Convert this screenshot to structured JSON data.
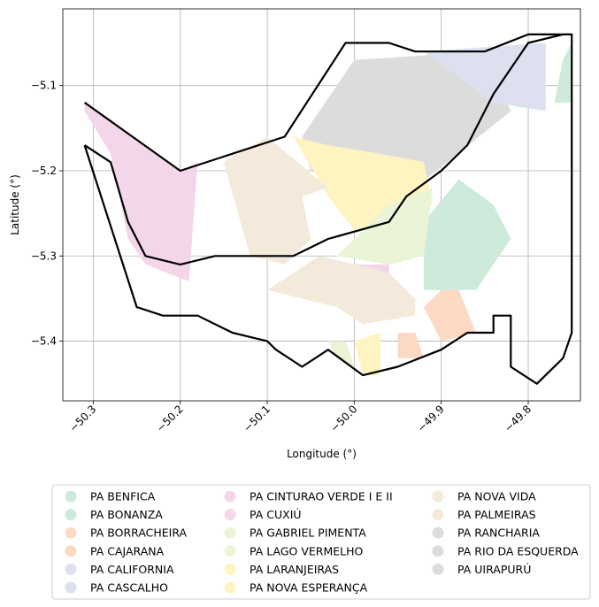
{
  "chart_data": {
    "type": "choropleth-map",
    "xlabel": "Longitude (°)",
    "ylabel": "Latitude (°)",
    "xlim": [
      -50.335,
      -49.74
    ],
    "ylim": [
      -5.47,
      -5.01
    ],
    "xticks": [
      {
        "value": -50.3,
        "label": "−50.3"
      },
      {
        "value": -50.2,
        "label": "−50.2"
      },
      {
        "value": -50.1,
        "label": "−50.1"
      },
      {
        "value": -50.0,
        "label": "−50.0"
      },
      {
        "value": -49.9,
        "label": "−49.9"
      },
      {
        "value": -49.8,
        "label": "−49.8"
      }
    ],
    "yticks": [
      {
        "value": -5.1,
        "label": "−5.1"
      },
      {
        "value": -5.2,
        "label": "−5.2"
      },
      {
        "value": -5.3,
        "label": "−5.3"
      },
      {
        "value": -5.4,
        "label": "−5.4"
      }
    ],
    "grid": true,
    "legend_position": "bottom",
    "legend": [
      {
        "label": "PA BENFICA",
        "color": "#cdeadb"
      },
      {
        "label": "PA BONANZA",
        "color": "#cdeadb"
      },
      {
        "label": "PA BORRACHEIRA",
        "color": "#fcd9c3"
      },
      {
        "label": "PA CAJARANA",
        "color": "#fcd9c3"
      },
      {
        "label": "PA CALIFORNIA",
        "color": "#dde1ef"
      },
      {
        "label": "PA CASCALHO",
        "color": "#dde1ef"
      },
      {
        "label": "PA CINTURAO VERDE I E II",
        "color": "#f4d6ea"
      },
      {
        "label": "PA CUXIÚ",
        "color": "#f4d6ea"
      },
      {
        "label": "PA GABRIEL PIMENTA",
        "color": "#eaf4d6"
      },
      {
        "label": "PA LAGO VERMELHO",
        "color": "#eaf4d6"
      },
      {
        "label": "PA LARANJEIRAS",
        "color": "#fef4c2"
      },
      {
        "label": "PA NOVA ESPERANÇA",
        "color": "#fef4c2"
      },
      {
        "label": "PA NOVA VIDA",
        "color": "#f3eadc"
      },
      {
        "label": "PA PALMEIRAS",
        "color": "#f3eadc"
      },
      {
        "label": "PA RANCHARIA",
        "color": "#dcdcdc"
      },
      {
        "label": "PA RIO DA ESQUERDA",
        "color": "#dcdcdc"
      },
      {
        "label": "PA UIRAPURÚ",
        "color": "#dcdcdc"
      }
    ],
    "regions": [
      {
        "name": "PA CINTURAO VERDE I E II",
        "color": "#f4d6ea",
        "coords": [
          [
            -50.31,
            -5.13
          ],
          [
            -50.28,
            -5.18
          ],
          [
            -50.26,
            -5.28
          ],
          [
            -50.24,
            -5.31
          ],
          [
            -50.19,
            -5.33
          ],
          [
            -50.18,
            -5.19
          ],
          [
            -50.2,
            -5.2
          ],
          [
            -50.31,
            -5.12
          ]
        ]
      },
      {
        "name": "PA CUXIÚ",
        "color": "#f4d6ea",
        "coords": [
          [
            -50.03,
            -5.31
          ],
          [
            -49.96,
            -5.31
          ],
          [
            -49.96,
            -5.33
          ],
          [
            -50.02,
            -5.32
          ]
        ]
      },
      {
        "name": "PA RANCHARIA",
        "color": "#dcdcdc",
        "coords": [
          [
            -50.06,
            -5.16
          ],
          [
            -50.0,
            -5.07
          ],
          [
            -49.85,
            -5.06
          ],
          [
            -49.82,
            -5.13
          ],
          [
            -49.93,
            -5.22
          ],
          [
            -50.0,
            -5.23
          ],
          [
            -50.05,
            -5.2
          ]
        ]
      },
      {
        "name": "PA RIO DA ESQUERDA",
        "color": "#dcdcdc",
        "coords": [
          [
            -50.03,
            -5.17
          ],
          [
            -50.0,
            -5.2
          ],
          [
            -50.02,
            -5.22
          ],
          [
            -50.04,
            -5.2
          ]
        ]
      },
      {
        "name": "PA CASCALHO",
        "color": "#dde1ef",
        "coords": [
          [
            -49.92,
            -5.06
          ],
          [
            -49.78,
            -5.05
          ],
          [
            -49.78,
            -5.13
          ],
          [
            -49.84,
            -5.12
          ]
        ]
      },
      {
        "name": "PA BENFICA",
        "color": "#cdeadb",
        "coords": [
          [
            -49.76,
            -5.07
          ],
          [
            -49.75,
            -5.05
          ],
          [
            -49.75,
            -5.12
          ],
          [
            -49.77,
            -5.12
          ]
        ]
      },
      {
        "name": "PA BONANZA",
        "color": "#cdeadb",
        "coords": [
          [
            -49.92,
            -5.26
          ],
          [
            -49.88,
            -5.21
          ],
          [
            -49.84,
            -5.24
          ],
          [
            -49.82,
            -5.28
          ],
          [
            -49.86,
            -5.34
          ],
          [
            -49.92,
            -5.34
          ],
          [
            -49.92,
            -5.3
          ]
        ]
      },
      {
        "name": "PA LARANJEIRAS",
        "color": "#fef4c2",
        "coords": [
          [
            -50.07,
            -5.16
          ],
          [
            -50.03,
            -5.17
          ],
          [
            -49.97,
            -5.18
          ],
          [
            -49.92,
            -5.19
          ],
          [
            -49.91,
            -5.24
          ],
          [
            -49.96,
            -5.27
          ],
          [
            -50.0,
            -5.27
          ],
          [
            -50.03,
            -5.23
          ]
        ]
      },
      {
        "name": "PA NOVA ESPERANÇA",
        "color": "#fef4c2",
        "coords": [
          [
            -50.0,
            -5.4
          ],
          [
            -49.97,
            -5.39
          ],
          [
            -49.97,
            -5.44
          ],
          [
            -49.99,
            -5.44
          ]
        ]
      },
      {
        "name": "PA GABRIEL PIMENTA",
        "color": "#eaf4d6",
        "coords": [
          [
            -50.02,
            -5.3
          ],
          [
            -49.96,
            -5.24
          ],
          [
            -49.91,
            -5.22
          ],
          [
            -49.92,
            -5.3
          ],
          [
            -49.96,
            -5.31
          ]
        ]
      },
      {
        "name": "PA LAGO VERMELHO",
        "color": "#eaf4d6",
        "coords": [
          [
            -50.03,
            -5.4
          ],
          [
            -50.01,
            -5.4
          ],
          [
            -50.0,
            -5.43
          ],
          [
            -50.02,
            -5.42
          ]
        ]
      },
      {
        "name": "PA NOVA VIDA",
        "color": "#f3eadc",
        "coords": [
          [
            -50.15,
            -5.19
          ],
          [
            -50.1,
            -5.16
          ],
          [
            -50.03,
            -5.22
          ],
          [
            -50.06,
            -5.23
          ],
          [
            -50.05,
            -5.28
          ],
          [
            -50.08,
            -5.31
          ],
          [
            -50.12,
            -5.3
          ]
        ]
      },
      {
        "name": "PA PALMEIRAS",
        "color": "#f3eadc",
        "coords": [
          [
            -50.1,
            -5.34
          ],
          [
            -50.04,
            -5.3
          ],
          [
            -49.96,
            -5.32
          ],
          [
            -49.93,
            -5.35
          ],
          [
            -49.93,
            -5.37
          ],
          [
            -49.99,
            -5.38
          ],
          [
            -50.02,
            -5.36
          ]
        ]
      },
      {
        "name": "PA BORRACHEIRA",
        "color": "#fcd9c3",
        "coords": [
          [
            -49.92,
            -5.36
          ],
          [
            -49.9,
            -5.34
          ],
          [
            -49.88,
            -5.34
          ],
          [
            -49.86,
            -5.39
          ],
          [
            -49.9,
            -5.4
          ]
        ]
      },
      {
        "name": "PA CAJARANA",
        "color": "#fcd9c3",
        "coords": [
          [
            -49.95,
            -5.39
          ],
          [
            -49.93,
            -5.39
          ],
          [
            -49.92,
            -5.42
          ],
          [
            -49.95,
            -5.42
          ]
        ]
      }
    ],
    "boundaries": [
      {
        "name": "municipal-boundary",
        "coords": [
          [
            -50.31,
            -5.12
          ],
          [
            -50.2,
            -5.2
          ],
          [
            -50.08,
            -5.16
          ],
          [
            -50.01,
            -5.05
          ],
          [
            -49.96,
            -5.05
          ],
          [
            -49.93,
            -5.06
          ],
          [
            -49.85,
            -5.06
          ],
          [
            -49.8,
            -5.04
          ],
          [
            -49.75,
            -5.04
          ],
          [
            -49.75,
            -5.39
          ],
          [
            -49.76,
            -5.42
          ],
          [
            -49.79,
            -5.45
          ],
          [
            -49.82,
            -5.43
          ],
          [
            -49.82,
            -5.37
          ],
          [
            -49.84,
            -5.37
          ],
          [
            -49.84,
            -5.39
          ],
          [
            -49.87,
            -5.39
          ],
          [
            -49.9,
            -5.41
          ],
          [
            -49.95,
            -5.43
          ],
          [
            -49.99,
            -5.44
          ],
          [
            -50.03,
            -5.41
          ],
          [
            -50.06,
            -5.43
          ],
          [
            -50.09,
            -5.41
          ],
          [
            -50.1,
            -5.4
          ],
          [
            -50.14,
            -5.39
          ],
          [
            -50.18,
            -5.37
          ],
          [
            -50.2,
            -5.37
          ],
          [
            -50.22,
            -5.37
          ],
          [
            -50.25,
            -5.36
          ],
          [
            -50.31,
            -5.17
          ]
        ]
      },
      {
        "name": "river-boundary",
        "coords": [
          [
            -50.31,
            -5.17
          ],
          [
            -50.28,
            -5.19
          ],
          [
            -50.26,
            -5.26
          ],
          [
            -50.24,
            -5.3
          ],
          [
            -50.2,
            -5.31
          ],
          [
            -50.16,
            -5.3
          ],
          [
            -50.12,
            -5.3
          ],
          [
            -50.07,
            -5.3
          ],
          [
            -50.03,
            -5.28
          ],
          [
            -49.96,
            -5.26
          ],
          [
            -49.94,
            -5.23
          ],
          [
            -49.9,
            -5.2
          ],
          [
            -49.87,
            -5.17
          ],
          [
            -49.84,
            -5.11
          ],
          [
            -49.8,
            -5.05
          ],
          [
            -49.76,
            -5.04
          ]
        ]
      }
    ]
  }
}
